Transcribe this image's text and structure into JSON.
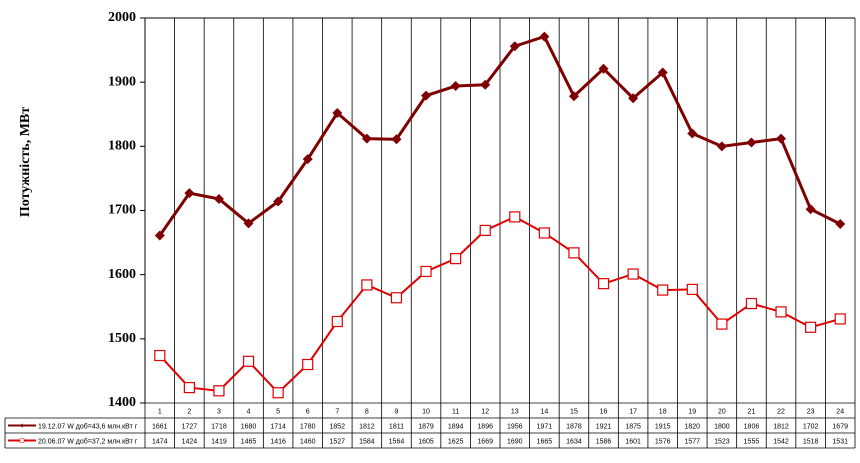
{
  "chart_data": {
    "type": "line",
    "y_label": "Потужність, МВт",
    "categories": [
      "1",
      "2",
      "3",
      "4",
      "5",
      "6",
      "7",
      "8",
      "9",
      "10",
      "11",
      "12",
      "13",
      "14",
      "15",
      "16",
      "17",
      "18",
      "19",
      "20",
      "21",
      "22",
      "23",
      "24"
    ],
    "series": [
      {
        "name": "19.12.07 W доб=43,6 млн.кВт г",
        "color": "#7f0000",
        "marker": "diamond",
        "values": [
          1661,
          1727,
          1718,
          1680,
          1714,
          1780,
          1852,
          1812,
          1811,
          1879,
          1894,
          1896,
          1956,
          1971,
          1878,
          1921,
          1875,
          1915,
          1820,
          1800,
          1806,
          1812,
          1702,
          1679
        ]
      },
      {
        "name": "20.06.07 W доб=37,2 млн.кВт г",
        "color": "#e00000",
        "marker": "square",
        "values": [
          1474,
          1424,
          1419,
          1465,
          1416,
          1460,
          1527,
          1584,
          1564,
          1605,
          1625,
          1669,
          1690,
          1665,
          1634,
          1586,
          1601,
          1576,
          1577,
          1523,
          1555,
          1542,
          1518,
          1531
        ]
      }
    ],
    "ylim": [
      1400,
      2000
    ],
    "yticks": [
      1400,
      1500,
      1600,
      1700,
      1800,
      1900,
      2000
    ]
  }
}
